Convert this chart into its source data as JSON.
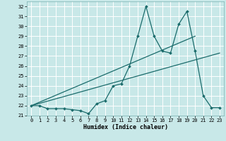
{
  "xlabel": "Humidex (Indice chaleur)",
  "xlim": [
    -0.5,
    23.5
  ],
  "ylim": [
    21.0,
    32.5
  ],
  "yticks": [
    21,
    22,
    23,
    24,
    25,
    26,
    27,
    28,
    29,
    30,
    31,
    32
  ],
  "xticks": [
    0,
    1,
    2,
    3,
    4,
    5,
    6,
    7,
    8,
    9,
    10,
    11,
    12,
    13,
    14,
    15,
    16,
    17,
    18,
    19,
    20,
    21,
    22,
    23
  ],
  "bg_color": "#c8e8e8",
  "grid_color": "#ffffff",
  "line_color": "#1a6b6b",
  "data_x": [
    0,
    1,
    2,
    3,
    4,
    5,
    6,
    7,
    8,
    9,
    10,
    11,
    12,
    13,
    14,
    15,
    16,
    17,
    18,
    19,
    20,
    21,
    22,
    23
  ],
  "data_y": [
    22.0,
    22.0,
    21.7,
    21.7,
    21.7,
    21.6,
    21.5,
    21.2,
    22.2,
    22.5,
    24.0,
    24.2,
    26.0,
    29.0,
    32.0,
    29.0,
    27.5,
    27.3,
    30.2,
    31.5,
    27.5,
    23.0,
    21.8,
    21.8
  ],
  "trend1_x": [
    0,
    23
  ],
  "trend1_y": [
    22.0,
    27.3
  ],
  "trend2_x": [
    0,
    20
  ],
  "trend2_y": [
    22.0,
    29.0
  ]
}
